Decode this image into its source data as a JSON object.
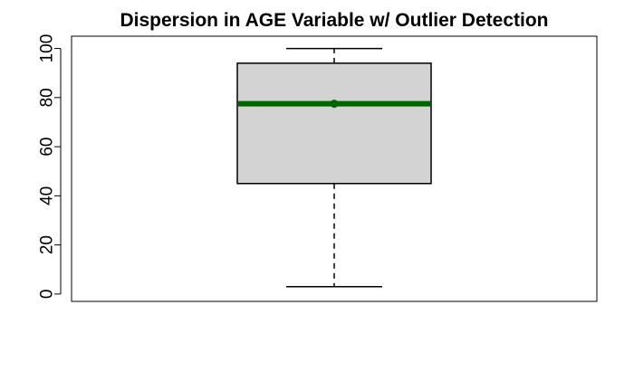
{
  "chart_data": {
    "type": "boxplot",
    "title": "Dispersion in AGE Variable w/ Outlier Detection",
    "xlabel": "",
    "ylabel": "",
    "ylim": [
      -3,
      105
    ],
    "yticks": [
      0,
      20,
      40,
      60,
      80,
      100
    ],
    "grid": false,
    "box": {
      "min": 3,
      "q1": 45,
      "median": 77.5,
      "mean": 77.5,
      "q3": 94,
      "max": 100
    },
    "colors": {
      "box_fill": "#d3d3d3",
      "median_line": "#006400",
      "mean_point": "#006400",
      "outline": "#000000"
    }
  }
}
